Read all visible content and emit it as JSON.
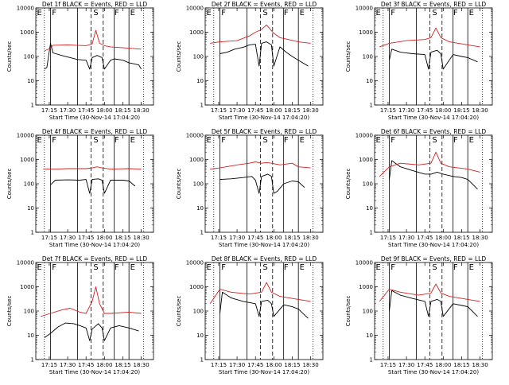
{
  "figure": {
    "xlabel": "Start Time (30-Nov-14 17:04:20)",
    "ylabel": "Counts/sec",
    "x_ticks": [
      "17:15",
      "17:30",
      "17:45",
      "18:00",
      "18:15",
      "18:30"
    ],
    "y_ticks": [
      "1",
      "10",
      "100",
      "1000",
      "10000"
    ],
    "colors": {
      "events": "#000000",
      "lld": "#d42020",
      "axes": "#000000"
    }
  },
  "chart_data": [
    {
      "type": "line",
      "title": "Det 1f BLACK = Events, RED = LLD",
      "xlabel": "Start Time (30-Nov-14 17:04:20)",
      "ylabel": "Counts/sec",
      "y_scale": "log",
      "ylim": [
        1,
        10000
      ],
      "xlim": [
        "17:04",
        "18:40"
      ],
      "region_labels": [
        "E",
        "F",
        "S",
        "F",
        "E"
      ],
      "boundaries_solid": [
        "17:16",
        "17:38",
        "18:08",
        "18:20"
      ],
      "boundaries_dashed": [
        "17:49",
        "17:59"
      ],
      "boundaries_dotted": [
        "18:32"
      ],
      "series": [
        {
          "name": "BLACK = Events",
          "x": [
            "17:11",
            "17:13",
            "17:16",
            "17:18",
            "17:25",
            "17:32",
            "17:38",
            "17:45",
            "17:48",
            "17:50",
            "17:54",
            "17:58",
            "18:00",
            "18:05",
            "18:08",
            "18:15",
            "18:20",
            "18:28",
            "18:30"
          ],
          "y": [
            30,
            35,
            350,
            140,
            110,
            90,
            75,
            70,
            30,
            90,
            110,
            90,
            30,
            70,
            80,
            70,
            55,
            45,
            30
          ]
        },
        {
          "name": "RED = LLD",
          "x": [
            "17:11",
            "17:16",
            "17:18",
            "17:30",
            "17:45",
            "17:50",
            "17:53",
            "17:56",
            "18:00",
            "18:05",
            "18:20",
            "18:30"
          ],
          "y": [
            170,
            220,
            290,
            300,
            280,
            330,
            1200,
            350,
            280,
            250,
            220,
            200
          ]
        }
      ]
    },
    {
      "type": "line",
      "title": "Det 2f BLACK = Events, RED = LLD",
      "xlabel": "Start Time (30-Nov-14 17:04:20)",
      "ylabel": "Counts/sec",
      "y_scale": "log",
      "ylim": [
        1,
        10000
      ],
      "xlim": [
        "17:04",
        "18:40"
      ],
      "region_labels": [
        "E",
        "F",
        "S",
        "F",
        "E"
      ],
      "boundaries_solid": [
        "17:16",
        "17:38",
        "18:08",
        "18:20"
      ],
      "boundaries_dashed": [
        "17:49",
        "17:59"
      ],
      "boundaries_dotted": [
        "18:32"
      ],
      "series": [
        {
          "name": "BLACK = Events",
          "x": [
            "17:16",
            "17:22",
            "17:28",
            "17:35",
            "17:40",
            "17:45",
            "17:48",
            "17:50",
            "17:54",
            "17:58",
            "18:00",
            "18:05",
            "18:10",
            "18:15",
            "18:20",
            "18:28"
          ],
          "y": [
            130,
            150,
            200,
            240,
            300,
            320,
            40,
            350,
            400,
            300,
            40,
            250,
            150,
            100,
            70,
            40
          ]
        },
        {
          "name": "RED = LLD",
          "x": [
            "17:08",
            "17:16",
            "17:30",
            "17:40",
            "17:45",
            "17:50",
            "17:54",
            "18:00",
            "18:05",
            "18:20",
            "18:30"
          ],
          "y": [
            350,
            400,
            450,
            700,
            1000,
            1300,
            2000,
            900,
            600,
            400,
            350
          ]
        }
      ]
    },
    {
      "type": "line",
      "title": "Det 3f BLACK = Events, RED = LLD",
      "xlabel": "Start Time (30-Nov-14 17:04:20)",
      "ylabel": "Counts/sec",
      "y_scale": "log",
      "ylim": [
        1,
        10000
      ],
      "xlim": [
        "17:04",
        "18:40"
      ],
      "region_labels": [
        "E",
        "F",
        "S",
        "F",
        "E"
      ],
      "boundaries_solid": [
        "17:16",
        "17:38",
        "18:08",
        "18:20"
      ],
      "boundaries_dashed": [
        "17:49",
        "17:59"
      ],
      "boundaries_dotted": [
        "18:32"
      ],
      "series": [
        {
          "name": "BLACK = Events",
          "x": [
            "17:16",
            "17:18",
            "17:25",
            "17:35",
            "17:45",
            "17:48",
            "17:50",
            "17:55",
            "17:58",
            "18:00",
            "18:08",
            "18:15",
            "18:20",
            "18:28"
          ],
          "y": [
            70,
            200,
            150,
            130,
            120,
            30,
            150,
            180,
            130,
            30,
            120,
            100,
            90,
            60
          ]
        },
        {
          "name": "RED = LLD",
          "x": [
            "17:08",
            "17:16",
            "17:30",
            "17:45",
            "17:50",
            "17:54",
            "17:58",
            "18:05",
            "18:20",
            "18:30"
          ],
          "y": [
            250,
            350,
            450,
            500,
            600,
            1500,
            600,
            400,
            300,
            250
          ]
        }
      ]
    },
    {
      "type": "line",
      "title": "Det 4f BLACK = Events, RED = LLD",
      "xlabel": "Start Time (30-Nov-14 17:04:20)",
      "ylabel": "Counts/sec",
      "y_scale": "log",
      "ylim": [
        1,
        10000
      ],
      "xlim": [
        "17:04",
        "18:40"
      ],
      "region_labels": [
        "E",
        "F",
        "S",
        "F",
        "E"
      ],
      "boundaries_solid": [
        "17:16",
        "17:38",
        "18:08",
        "18:20"
      ],
      "boundaries_dashed": [
        "17:49",
        "17:59"
      ],
      "boundaries_dotted": [
        "18:32"
      ],
      "series": [
        {
          "name": "BLACK = Events",
          "x": [
            "17:16",
            "17:20",
            "17:30",
            "17:40",
            "17:45",
            "17:48",
            "17:50",
            "17:55",
            "17:58",
            "18:00",
            "18:05",
            "18:15",
            "18:20",
            "18:25"
          ],
          "y": [
            90,
            140,
            145,
            140,
            150,
            40,
            150,
            160,
            140,
            40,
            140,
            140,
            130,
            80
          ]
        },
        {
          "name": "RED = LLD",
          "x": [
            "17:10",
            "17:20",
            "17:30",
            "17:45",
            "17:50",
            "17:54",
            "17:58",
            "18:05",
            "18:20",
            "18:30"
          ],
          "y": [
            400,
            400,
            420,
            420,
            450,
            500,
            450,
            400,
            420,
            400
          ]
        }
      ]
    },
    {
      "type": "line",
      "title": "Det 5f BLACK = Events, RED = LLD",
      "xlabel": "Start Time (30-Nov-14 17:04:20)",
      "ylabel": "Counts/sec",
      "y_scale": "log",
      "ylim": [
        1,
        10000
      ],
      "xlim": [
        "17:04",
        "18:40"
      ],
      "region_labels": [
        "E",
        "F",
        "S",
        "F",
        "E"
      ],
      "boundaries_solid": [
        "17:16",
        "17:38",
        "18:08",
        "18:20"
      ],
      "boundaries_dashed": [
        "17:49",
        "17:59"
      ],
      "boundaries_dotted": [
        "18:32"
      ],
      "series": [
        {
          "name": "BLACK = Events",
          "x": [
            "17:16",
            "17:25",
            "17:35",
            "17:42",
            "17:45",
            "17:48",
            "17:50",
            "17:55",
            "17:58",
            "18:00",
            "18:03",
            "18:08",
            "18:15",
            "18:20",
            "18:25"
          ],
          "y": [
            150,
            160,
            180,
            200,
            140,
            40,
            200,
            250,
            200,
            40,
            50,
            100,
            130,
            120,
            70
          ]
        },
        {
          "name": "RED = LLD",
          "x": [
            "17:08",
            "17:16",
            "17:30",
            "17:40",
            "17:45",
            "17:50",
            "17:54",
            "17:58",
            "18:05",
            "18:15",
            "18:20",
            "18:30"
          ],
          "y": [
            400,
            450,
            600,
            700,
            800,
            700,
            750,
            700,
            600,
            700,
            500,
            450
          ]
        }
      ]
    },
    {
      "type": "line",
      "title": "Det 6f BLACK = Events, RED = LLD",
      "xlabel": "Start Time (30-Nov-14 17:04:20)",
      "ylabel": "Counts/sec",
      "y_scale": "log",
      "ylim": [
        1,
        10000
      ],
      "xlim": [
        "17:04",
        "18:40"
      ],
      "region_labels": [
        "E",
        "F",
        "S",
        "F",
        "E"
      ],
      "boundaries_solid": [
        "17:16",
        "17:38",
        "18:08",
        "18:20"
      ],
      "boundaries_dashed": [
        "17:49",
        "17:59"
      ],
      "boundaries_dotted": [
        "18:32"
      ],
      "series": [
        {
          "name": "BLACK = Events",
          "x": [
            "17:16",
            "17:18",
            "17:25",
            "17:35",
            "17:45",
            "17:50",
            "17:55",
            "18:00",
            "18:08",
            "18:15",
            "18:20",
            "18:28"
          ],
          "y": [
            150,
            900,
            500,
            350,
            250,
            250,
            300,
            250,
            200,
            180,
            150,
            60
          ]
        },
        {
          "name": "RED = LLD",
          "x": [
            "17:08",
            "17:16",
            "17:25",
            "17:40",
            "17:50",
            "17:54",
            "17:58",
            "18:05",
            "18:20",
            "18:30"
          ],
          "y": [
            200,
            500,
            700,
            600,
            700,
            2000,
            700,
            500,
            400,
            300
          ]
        }
      ]
    },
    {
      "type": "line",
      "title": "Det 7f BLACK = Events, RED = LLD",
      "xlabel": "Start Time (30-Nov-14 17:04:20)",
      "ylabel": "Counts/sec",
      "y_scale": "log",
      "ylim": [
        1,
        10000
      ],
      "xlim": [
        "17:04",
        "18:40"
      ],
      "region_labels": [
        "E",
        "F",
        "S",
        "F",
        "E"
      ],
      "boundaries_solid": [
        "17:16",
        "17:38",
        "18:08",
        "18:20"
      ],
      "boundaries_dashed": [
        "17:49",
        "17:59"
      ],
      "boundaries_dotted": [
        "18:32"
      ],
      "series": [
        {
          "name": "BLACK = Events",
          "x": [
            "17:11",
            "17:16",
            "17:22",
            "17:28",
            "17:35",
            "17:40",
            "17:45",
            "17:48",
            "17:50",
            "17:55",
            "17:58",
            "18:00",
            "18:05",
            "18:12",
            "18:20",
            "18:28"
          ],
          "y": [
            8,
            12,
            22,
            32,
            30,
            25,
            20,
            6,
            18,
            30,
            20,
            6,
            20,
            25,
            20,
            15
          ]
        },
        {
          "name": "RED = LLD",
          "x": [
            "17:08",
            "17:16",
            "17:25",
            "17:32",
            "17:40",
            "17:45",
            "17:50",
            "17:53",
            "17:56",
            "18:00",
            "18:05",
            "18:20",
            "18:30"
          ],
          "y": [
            60,
            80,
            110,
            130,
            90,
            80,
            250,
            1000,
            200,
            80,
            80,
            90,
            80
          ]
        }
      ]
    },
    {
      "type": "line",
      "title": "Det 8f BLACK = Events, RED = LLD",
      "xlabel": "Start Time (30-Nov-14 17:04:20)",
      "ylabel": "Counts/sec",
      "y_scale": "log",
      "ylim": [
        1,
        10000
      ],
      "xlim": [
        "17:04",
        "18:40"
      ],
      "region_labels": [
        "E",
        "F",
        "S",
        "F",
        "E"
      ],
      "boundaries_solid": [
        "17:16",
        "17:38",
        "18:08",
        "18:20"
      ],
      "boundaries_dashed": [
        "17:49",
        "17:59"
      ],
      "boundaries_dotted": [
        "18:32"
      ],
      "series": [
        {
          "name": "BLACK = Events",
          "x": [
            "17:16",
            "17:18",
            "17:25",
            "17:35",
            "17:45",
            "17:48",
            "17:50",
            "17:55",
            "17:58",
            "18:00",
            "18:08",
            "18:15",
            "18:20",
            "18:28"
          ],
          "y": [
            80,
            600,
            350,
            250,
            200,
            60,
            250,
            280,
            200,
            60,
            180,
            150,
            120,
            50
          ]
        },
        {
          "name": "RED = LLD",
          "x": [
            "17:08",
            "17:16",
            "17:25",
            "17:40",
            "17:50",
            "17:54",
            "17:58",
            "18:05",
            "18:20",
            "18:30"
          ],
          "y": [
            200,
            800,
            600,
            500,
            600,
            1500,
            600,
            400,
            300,
            250
          ]
        }
      ]
    },
    {
      "type": "line",
      "title": "Det 9f BLACK = Events, RED = LLD",
      "xlabel": "Start Time (30-Nov-14 17:04:20)",
      "ylabel": "Counts/sec",
      "y_scale": "log",
      "ylim": [
        1,
        10000
      ],
      "xlim": [
        "17:04",
        "18:40"
      ],
      "region_labels": [
        "E",
        "F",
        "S",
        "F",
        "E"
      ],
      "boundaries_solid": [
        "17:16",
        "17:38",
        "18:08",
        "18:20"
      ],
      "boundaries_dashed": [
        "17:49",
        "17:59"
      ],
      "boundaries_dotted": [
        "18:32"
      ],
      "series": [
        {
          "name": "BLACK = Events",
          "x": [
            "17:16",
            "17:18",
            "17:25",
            "17:35",
            "17:45",
            "17:48",
            "17:50",
            "17:55",
            "17:58",
            "18:00",
            "18:08",
            "18:15",
            "18:20",
            "18:28"
          ],
          "y": [
            100,
            700,
            450,
            330,
            250,
            60,
            250,
            300,
            250,
            60,
            200,
            170,
            150,
            60
          ]
        },
        {
          "name": "RED = LLD",
          "x": [
            "17:08",
            "17:16",
            "17:25",
            "17:40",
            "17:50",
            "17:54",
            "17:58",
            "18:05",
            "18:20",
            "18:30"
          ],
          "y": [
            250,
            800,
            600,
            450,
            550,
            1300,
            550,
            400,
            300,
            250
          ]
        }
      ]
    }
  ]
}
